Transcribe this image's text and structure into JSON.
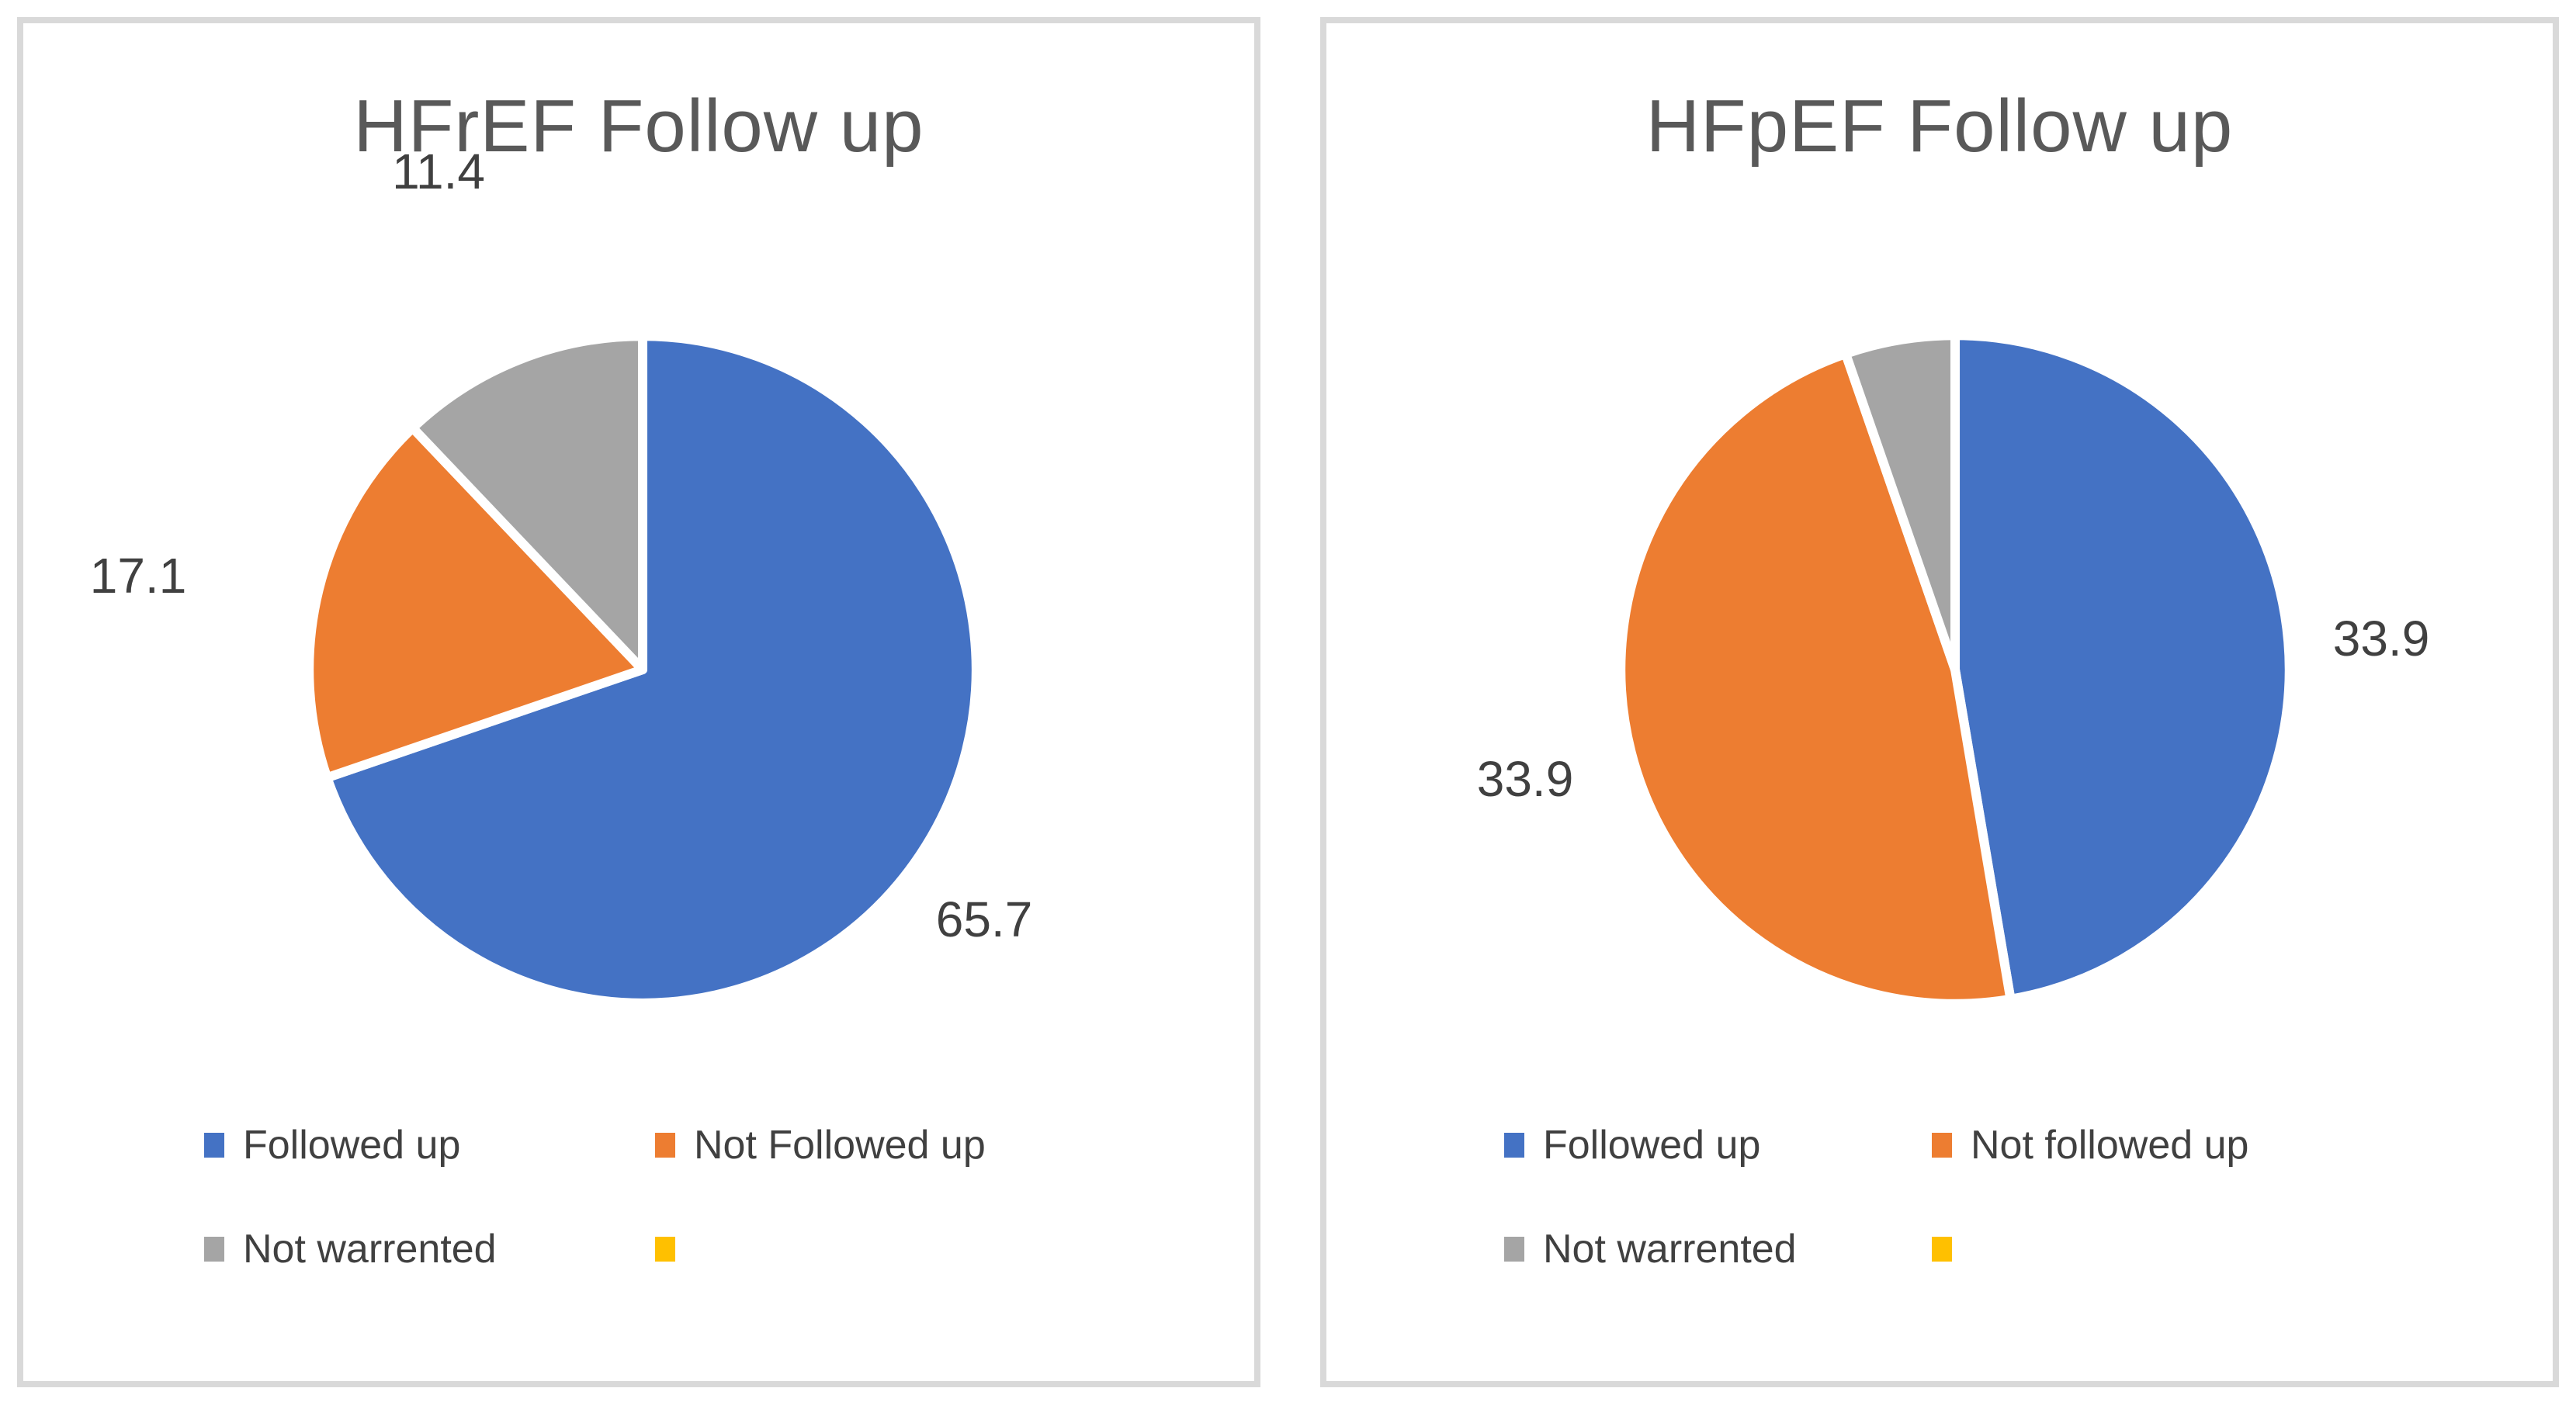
{
  "page": {
    "background_color": "#FFFFFF",
    "panel_border_color": "#D9D9D9",
    "title_color": "#595959",
    "text_color": "#404040",
    "slice_separator_color": "#FFFFFF"
  },
  "chart_data": [
    {
      "type": "pie",
      "title": "HFrEF Follow up",
      "legend_position": "bottom",
      "grid": false,
      "categories": [
        "Followed up",
        "Not Followed up",
        "Not warrented",
        ""
      ],
      "values": [
        65.7,
        17.1,
        11.4,
        0
      ],
      "slices": [
        {
          "label": "Followed up",
          "value": 65.7,
          "data_label": "65.7",
          "color": "#4472C4"
        },
        {
          "label": "Not Followed up",
          "value": 17.1,
          "data_label": "17.1",
          "color": "#ED7D31"
        },
        {
          "label": "Not warrented",
          "value": 11.4,
          "data_label": "11.4",
          "color": "#A5A5A5"
        },
        {
          "label": "",
          "value": 0,
          "data_label": "",
          "color": "#FFC000"
        }
      ],
      "legend": [
        {
          "label": "Followed up",
          "color": "#4472C4"
        },
        {
          "label": "Not Followed up",
          "color": "#ED7D31"
        },
        {
          "label": "Not warrented",
          "color": "#A5A5A5"
        },
        {
          "label": "",
          "color": "#FFC000"
        }
      ]
    },
    {
      "type": "pie",
      "title": "HFpEF Follow up",
      "legend_position": "bottom",
      "grid": false,
      "categories": [
        "Followed up",
        "Not followed up",
        "Not warrented",
        ""
      ],
      "values": [
        33.9,
        33.9,
        3.8,
        0
      ],
      "slices": [
        {
          "label": "Followed up",
          "value": 33.9,
          "data_label": "33.9",
          "color": "#4472C4"
        },
        {
          "label": "Not followed up",
          "value": 33.9,
          "data_label": "33.9",
          "color": "#ED7D31"
        },
        {
          "label": "Not warrented",
          "value": 3.8,
          "data_label": "",
          "color": "#A5A5A5"
        },
        {
          "label": "",
          "value": 0,
          "data_label": "",
          "color": "#FFC000"
        }
      ],
      "legend": [
        {
          "label": "Followed up",
          "color": "#4472C4"
        },
        {
          "label": "Not followed up",
          "color": "#ED7D31"
        },
        {
          "label": "Not warrented",
          "color": "#A5A5A5"
        },
        {
          "label": "",
          "color": "#FFC000"
        }
      ]
    }
  ]
}
